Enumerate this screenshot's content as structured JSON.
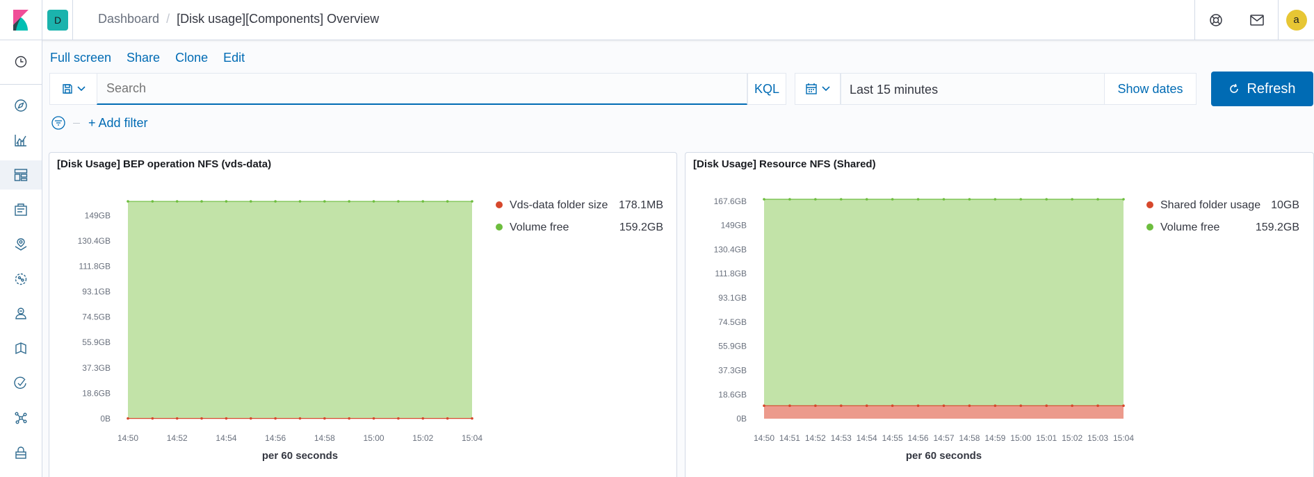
{
  "header": {
    "space_initial": "D",
    "breadcrumbs": [
      "Dashboard",
      "[Disk usage][Components] Overview"
    ],
    "crumb_separator": "/",
    "user_initial": "a"
  },
  "nav": {
    "icons": [
      "clock-icon",
      "compass-icon",
      "visualize-icon",
      "dashboard-icon",
      "canvas-icon",
      "maps-icon",
      "ml-icon",
      "metrics-icon",
      "logs-icon",
      "apm-icon",
      "graph-icon",
      "security-icon"
    ]
  },
  "top_menu": {
    "full_screen": "Full screen",
    "share": "Share",
    "clone": "Clone",
    "edit": "Edit"
  },
  "query": {
    "search_placeholder": "Search",
    "language": "KQL",
    "date_range": "Last 15 minutes",
    "show_dates": "Show dates",
    "refresh": "Refresh"
  },
  "filter": {
    "add_filter": "+ Add filter"
  },
  "colors": {
    "accent": "#006bb4",
    "volume_free": "#6dbd3e",
    "volume_free_fill": "#c2e3a8",
    "usage_red": "#d6482c",
    "usage_red_fill": "#ec9a8c"
  },
  "panels": [
    {
      "title": "[Disk Usage] BEP operation NFS (vds-data)"
    },
    {
      "title": "[Disk Usage] Resource NFS (Shared)"
    }
  ],
  "chart_data": [
    {
      "type": "area",
      "stacked": true,
      "x": [
        "14:50",
        "14:51",
        "14:52",
        "14:53",
        "14:54",
        "14:55",
        "14:56",
        "14:57",
        "14:58",
        "14:59",
        "15:00",
        "15:01",
        "15:02",
        "15:03",
        "15:04"
      ],
      "x_tick_labels": [
        "14:50",
        "14:52",
        "14:54",
        "14:56",
        "14:58",
        "15:00",
        "15:02",
        "15:04"
      ],
      "xlabel": "per 60 seconds",
      "y_tick_labels": [
        "0B",
        "18.6GB",
        "37.3GB",
        "55.9GB",
        "74.5GB",
        "93.1GB",
        "111.8GB",
        "130.4GB",
        "149GB"
      ],
      "y_tick_values": [
        0,
        18.6,
        37.3,
        55.9,
        74.5,
        93.1,
        111.8,
        130.4,
        149
      ],
      "ylim": [
        0,
        159.4
      ],
      "series": [
        {
          "name": "Vds-data folder size",
          "legend_value": "178.1MB",
          "values": [
            0.178,
            0.178,
            0.178,
            0.178,
            0.178,
            0.178,
            0.178,
            0.178,
            0.178,
            0.178,
            0.178,
            0.178,
            0.178,
            0.178,
            0.178
          ],
          "color": "#d6482c"
        },
        {
          "name": "Volume free",
          "legend_value": "159.2GB",
          "values": [
            159.2,
            159.2,
            159.2,
            159.2,
            159.2,
            159.2,
            159.2,
            159.2,
            159.2,
            159.2,
            159.2,
            159.2,
            159.2,
            159.2,
            159.2
          ],
          "color": "#6dbd3e"
        }
      ],
      "legend_position": "right",
      "grid": false
    },
    {
      "type": "area",
      "stacked": true,
      "x": [
        "14:50",
        "14:51",
        "14:52",
        "14:53",
        "14:54",
        "14:55",
        "14:56",
        "14:57",
        "14:58",
        "14:59",
        "15:00",
        "15:01",
        "15:02",
        "15:03",
        "15:04"
      ],
      "x_tick_labels": [
        "14:50",
        "14:51",
        "14:52",
        "14:53",
        "14:54",
        "14:55",
        "14:56",
        "14:57",
        "14:58",
        "14:59",
        "15:00",
        "15:01",
        "15:02",
        "15:03",
        "15:04"
      ],
      "xlabel": "per 60 seconds",
      "y_tick_labels": [
        "0B",
        "18.6GB",
        "37.3GB",
        "55.9GB",
        "74.5GB",
        "93.1GB",
        "111.8GB",
        "130.4GB",
        "149GB",
        "167.6GB"
      ],
      "y_tick_values": [
        0,
        18.6,
        37.3,
        55.9,
        74.5,
        93.1,
        111.8,
        130.4,
        149,
        167.6
      ],
      "ylim": [
        0,
        167.6
      ],
      "series": [
        {
          "name": "Shared folder usage",
          "legend_value": "10GB",
          "values": [
            10,
            10,
            10,
            10,
            10,
            10,
            10,
            10,
            10,
            10,
            10,
            10,
            10,
            10,
            10
          ],
          "color": "#d6482c"
        },
        {
          "name": "Volume free",
          "legend_value": "159.2GB",
          "values": [
            159.2,
            159.2,
            159.2,
            159.2,
            159.2,
            159.2,
            159.2,
            159.2,
            159.2,
            159.2,
            159.2,
            159.2,
            159.2,
            159.2,
            159.2
          ],
          "color": "#6dbd3e"
        }
      ],
      "legend_position": "right",
      "grid": false
    }
  ]
}
